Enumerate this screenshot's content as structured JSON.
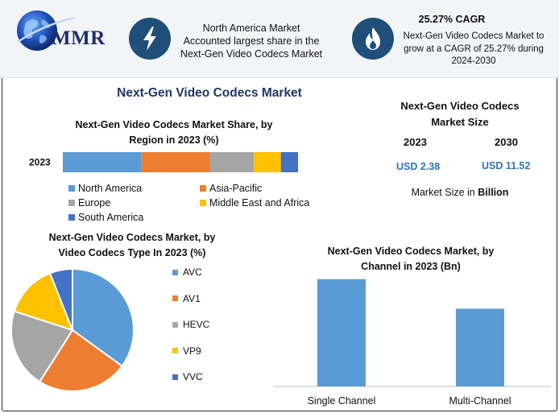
{
  "header": {
    "logo_text": "MMR",
    "market_region_text": [
      "North America Market",
      "Accounted largest share in the",
      "Next-Gen Video Codecs Market"
    ],
    "cagr_title": "25.27% CAGR",
    "cagr_text": [
      "Next-Gen Video Codecs Market to",
      "grow at a CAGR of 25.27% during",
      "2024-2030"
    ]
  },
  "main_title": "Next-Gen Video Codecs Market",
  "market_size": {
    "title": [
      "Next-Gen Video Codecs",
      "Market Size"
    ],
    "years": [
      "2023",
      "2030"
    ],
    "values": [
      "USD 2.38",
      "USD 11.52"
    ],
    "unit_prefix": "Market Size in ",
    "unit_bold": "Billion"
  },
  "colors": {
    "blue": "#5b9bd5",
    "orange": "#ed7d31",
    "gray": "#a5a5a5",
    "yellow": "#ffc000",
    "darkblue": "#4472c4",
    "badge": "#1f4e79",
    "title_navy": "#1f3864",
    "usd_blue": "#2e75b6"
  },
  "chart_data": [
    {
      "type": "bar",
      "orientation": "horizontal-stacked",
      "title": [
        "Next-Gen Video Codecs Market Share, by",
        "Region in 2023 (%)"
      ],
      "categories": [
        "2023"
      ],
      "series": [
        {
          "name": "North America",
          "values": [
            32
          ],
          "color": "#5b9bd5"
        },
        {
          "name": "Asia-Pacific",
          "values": [
            28
          ],
          "color": "#ed7d31"
        },
        {
          "name": "Europe",
          "values": [
            18
          ],
          "color": "#a5a5a5"
        },
        {
          "name": "Middle East and Africa",
          "values": [
            11
          ],
          "color": "#ffc000"
        },
        {
          "name": "South America",
          "values": [
            7
          ],
          "color": "#4472c4"
        }
      ],
      "legend": "bottom"
    },
    {
      "type": "pie",
      "title": [
        "Next-Gen Video Codecs Market, by",
        "Video Codecs Type In 2023 (%)"
      ],
      "labels": [
        "AVC",
        "AV1",
        "HEVC",
        "VP9",
        "VVC"
      ],
      "values": [
        35,
        24,
        21,
        14,
        6
      ],
      "colors": [
        "#5b9bd5",
        "#ed7d31",
        "#a5a5a5",
        "#ffc000",
        "#4472c4"
      ],
      "legend": "right"
    },
    {
      "type": "bar",
      "title": [
        "Next-Gen Video Codecs Market, by",
        "Channel in 2023 (Bn)"
      ],
      "categories": [
        "Single Channel",
        "Multi-Channel"
      ],
      "values": [
        1.38,
        1.0
      ],
      "color": "#5b9bd5",
      "ylim": [
        0,
        1.45
      ]
    }
  ]
}
